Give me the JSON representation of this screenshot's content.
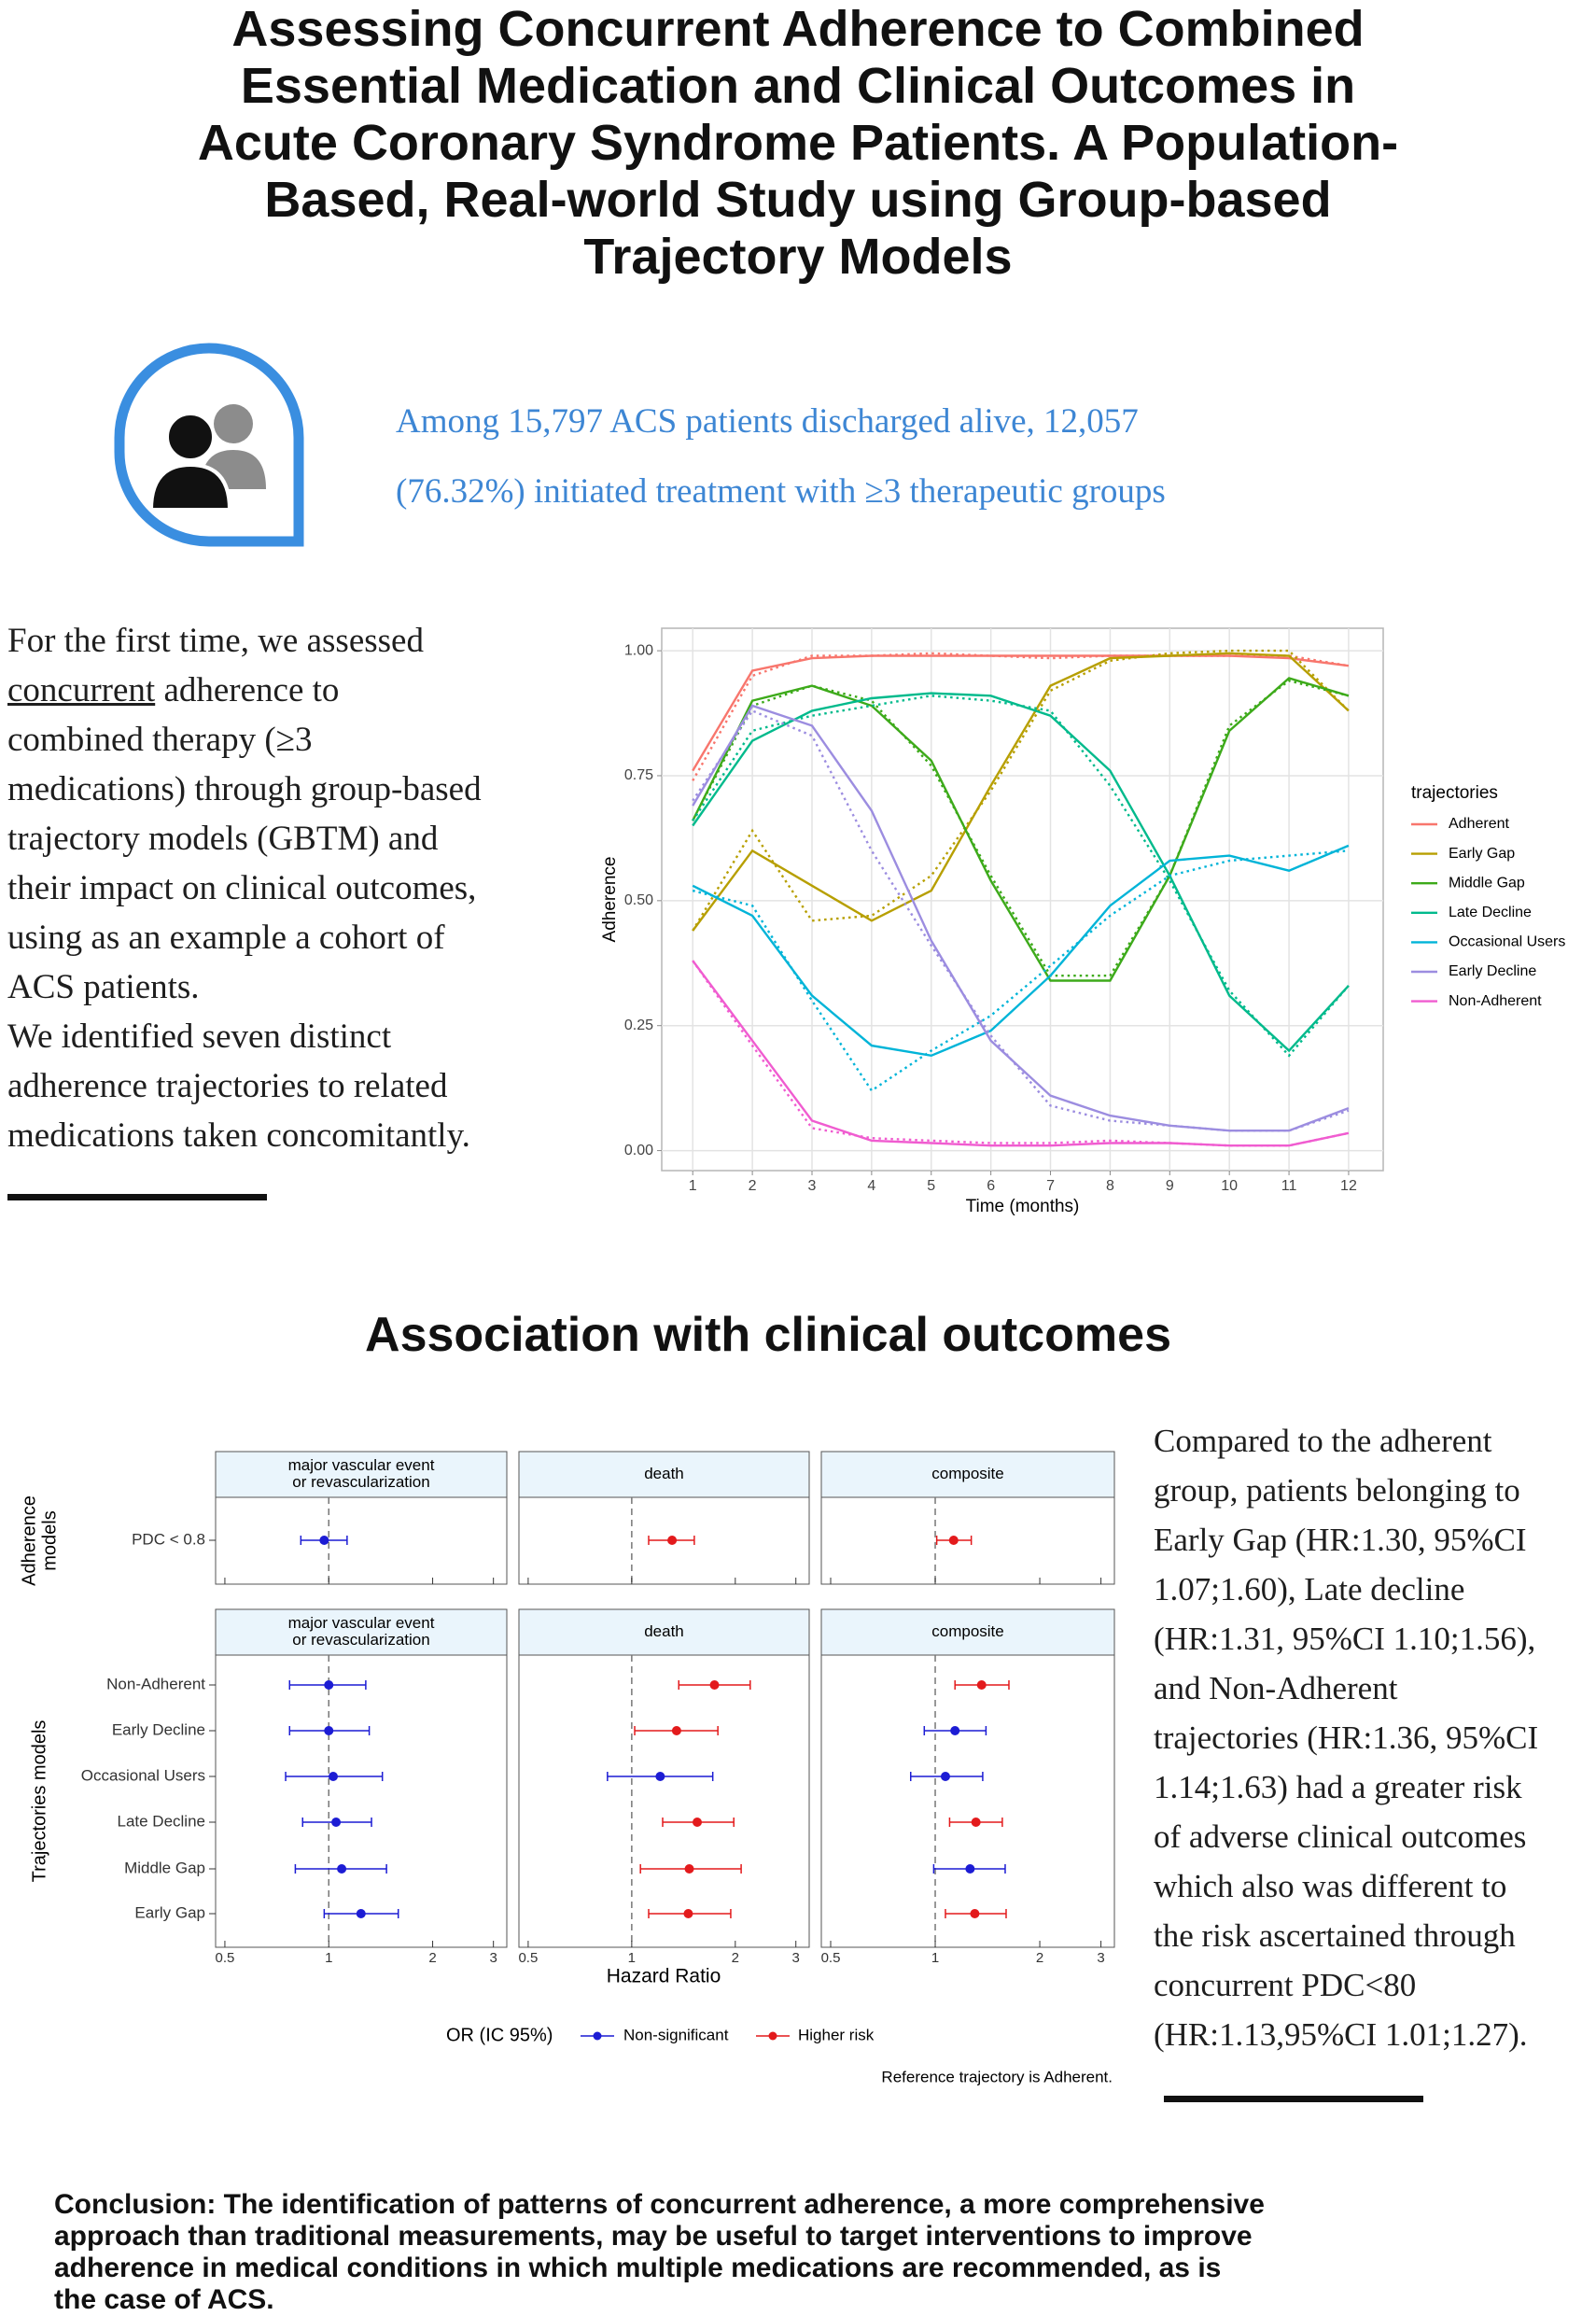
{
  "header": {
    "title_lines": [
      "Assessing Concurrent Adherence to Combined",
      "Essential Medication and Clinical Outcomes in",
      "Acute Coronary Syndrome Patients. A Population-",
      "Based, Real-world Study using Group-based",
      "Trajectory Models"
    ]
  },
  "summary": {
    "lines": [
      "Among 15,797 ACS patients discharged alive, 12,057",
      "(76.32%) initiated treatment with ≥3 therapeutic groups"
    ]
  },
  "intro": {
    "lines": [
      "For the first time, we assessed",
      {
        "underlined": "concurrent",
        "rest": " adherence to"
      },
      "combined therapy (≥3",
      "medications) through group-based",
      "trajectory models (GBTM) and",
      "their impact on clinical outcomes,",
      "using as an example a cohort of",
      "ACS patients.",
      "We identified seven distinct",
      "adherence trajectories to related",
      "medications taken concomitantly."
    ]
  },
  "section_title": "Association with clinical outcomes",
  "results": {
    "lines": [
      "Compared to the adherent",
      "group, patients belonging to",
      "Early Gap (HR:1.30, 95%CI",
      "1.07;1.60), Late decline",
      "(HR:1.31, 95%CI 1.10;1.56),",
      "and Non-Adherent",
      "trajectories (HR:1.36, 95%CI",
      "1.14;1.63) had a greater risk",
      "of adverse clinical outcomes",
      "which also was different to",
      "the risk ascertained through",
      "concurrent PDC<80",
      "(HR:1.13,95%CI 1.01;1.27)."
    ]
  },
  "conclusion": {
    "lines": [
      "Conclusion: The identification of patterns of concurrent adherence, a more comprehensive",
      "approach than traditional measurements, may be useful to target interventions to improve",
      "adherence in medical conditions in which multiple medications are recommended, as is",
      "the case of ACS."
    ]
  },
  "chart_data": [
    {
      "type": "line",
      "x_label": "Time (months)",
      "y_label": "Adherence",
      "legend_title": "trajectories",
      "x": [
        1,
        2,
        3,
        4,
        5,
        6,
        7,
        8,
        9,
        10,
        11,
        12
      ],
      "xlim": [
        0.48,
        12.58
      ],
      "xticks": [
        1,
        2,
        3,
        4,
        5,
        6,
        7,
        8,
        9,
        10,
        11,
        12
      ],
      "ylim": [
        -0.04,
        1.045
      ],
      "yticks": [
        {
          "value": 0,
          "label": "0.00"
        },
        {
          "value": 0.25,
          "label": "0.25"
        },
        {
          "value": 0.5,
          "label": "0.50"
        },
        {
          "value": 0.75,
          "label": "0.75"
        },
        {
          "value": 1,
          "label": "1.00"
        }
      ],
      "grid": true,
      "series": [
        {
          "name": "Adherent",
          "color": "#F8766D",
          "values": [
            0.76,
            0.96,
            0.985,
            0.99,
            0.99,
            0.99,
            0.99,
            0.99,
            0.99,
            0.99,
            0.985,
            0.97
          ],
          "dotted_values": [
            0.74,
            0.95,
            0.99,
            0.99,
            0.995,
            0.99,
            0.985,
            0.99,
            0.99,
            0.99,
            0.99,
            0.97
          ]
        },
        {
          "name": "Early Gap",
          "color": "#B79F00",
          "values": [
            0.44,
            0.6,
            0.53,
            0.46,
            0.52,
            0.73,
            0.93,
            0.985,
            0.99,
            0.995,
            0.99,
            0.88
          ],
          "dotted_values": [
            0.44,
            0.64,
            0.46,
            0.47,
            0.55,
            0.72,
            0.92,
            0.98,
            0.995,
            1.0,
            1.0,
            0.88
          ]
        },
        {
          "name": "Middle Gap",
          "color": "#3DAA1A",
          "values": [
            0.66,
            0.9,
            0.93,
            0.89,
            0.78,
            0.54,
            0.34,
            0.34,
            0.55,
            0.84,
            0.945,
            0.91
          ],
          "dotted_values": [
            0.66,
            0.89,
            0.93,
            0.9,
            0.77,
            0.55,
            0.35,
            0.35,
            0.55,
            0.85,
            0.94,
            0.91
          ]
        },
        {
          "name": "Late Decline",
          "color": "#00BA8C",
          "values": [
            0.65,
            0.82,
            0.88,
            0.905,
            0.915,
            0.91,
            0.87,
            0.76,
            0.55,
            0.31,
            0.2,
            0.33
          ],
          "dotted_values": [
            0.66,
            0.84,
            0.87,
            0.89,
            0.91,
            0.9,
            0.88,
            0.73,
            0.54,
            0.32,
            0.19,
            0.33
          ]
        },
        {
          "name": "Occasional Users",
          "color": "#00B4D8",
          "values": [
            0.53,
            0.47,
            0.31,
            0.21,
            0.19,
            0.24,
            0.35,
            0.49,
            0.58,
            0.59,
            0.56,
            0.61
          ],
          "dotted_values": [
            0.52,
            0.49,
            0.3,
            0.12,
            0.2,
            0.27,
            0.37,
            0.47,
            0.55,
            0.58,
            0.59,
            0.6
          ]
        },
        {
          "name": "Early Decline",
          "color": "#9C8DE0",
          "values": [
            0.69,
            0.89,
            0.85,
            0.68,
            0.42,
            0.22,
            0.11,
            0.07,
            0.05,
            0.04,
            0.04,
            0.085
          ],
          "dotted_values": [
            0.7,
            0.88,
            0.83,
            0.6,
            0.41,
            0.23,
            0.09,
            0.06,
            0.05,
            0.04,
            0.04,
            0.08
          ]
        },
        {
          "name": "Non-Adherent",
          "color": "#F05CD0",
          "values": [
            0.38,
            0.22,
            0.06,
            0.02,
            0.015,
            0.01,
            0.01,
            0.015,
            0.015,
            0.01,
            0.01,
            0.035
          ],
          "dotted_values": [
            0.38,
            0.21,
            0.045,
            0.025,
            0.02,
            0.015,
            0.015,
            0.02,
            0.015,
            0.01,
            0.01,
            0.035
          ]
        }
      ]
    },
    {
      "type": "forest",
      "x_label": "Hazard Ratio",
      "log_x": true,
      "xlim": [
        0.47,
        3.28
      ],
      "xticks": [
        0.5,
        1,
        2,
        3
      ],
      "reference_line": 1,
      "panels": [
        [
          "major vascular event",
          "or revascularization"
        ],
        [
          "death"
        ],
        [
          "composite"
        ]
      ],
      "groups": [
        {
          "label_lines": [
            "Adherence",
            "models"
          ],
          "rows": [
            "PDC < 0.8"
          ]
        },
        {
          "label_lines": [
            "Trajectories models"
          ],
          "rows": [
            "Non-Adherent",
            "Early Decline",
            "Occasional Users",
            "Late Decline",
            "Middle Gap",
            "Early Gap"
          ]
        }
      ],
      "legend_title": "OR (IC 95%)",
      "series": [
        {
          "name": "Non-significant",
          "color": "#1c1cd4"
        },
        {
          "name": "Higher risk",
          "color": "#e31a1c"
        }
      ],
      "note": "Reference trajectory is Adherent.",
      "estimates": [
        [
          [
            {
              "hr": 0.97,
              "lower": 0.83,
              "upper": 1.13,
              "series": 0
            }
          ],
          [
            {
              "hr": 1.31,
              "lower": 1.12,
              "upper": 1.52,
              "series": 1
            }
          ],
          [
            {
              "hr": 1.13,
              "lower": 1.01,
              "upper": 1.27,
              "series": 1
            }
          ]
        ],
        [
          [
            {
              "hr": 1.0,
              "lower": 0.77,
              "upper": 1.28,
              "series": 0
            },
            {
              "hr": 1.0,
              "lower": 0.77,
              "upper": 1.31,
              "series": 0
            },
            {
              "hr": 1.03,
              "lower": 0.75,
              "upper": 1.43,
              "series": 0
            },
            {
              "hr": 1.05,
              "lower": 0.84,
              "upper": 1.33,
              "series": 0
            },
            {
              "hr": 1.09,
              "lower": 0.8,
              "upper": 1.47,
              "series": 0
            },
            {
              "hr": 1.24,
              "lower": 0.97,
              "upper": 1.59,
              "series": 0
            }
          ],
          [
            {
              "hr": 1.74,
              "lower": 1.37,
              "upper": 2.21,
              "series": 1
            },
            {
              "hr": 1.35,
              "lower": 1.02,
              "upper": 1.78,
              "series": 1
            },
            {
              "hr": 1.21,
              "lower": 0.85,
              "upper": 1.72,
              "series": 0
            },
            {
              "hr": 1.55,
              "lower": 1.23,
              "upper": 1.98,
              "series": 1
            },
            {
              "hr": 1.47,
              "lower": 1.06,
              "upper": 2.08,
              "series": 1
            },
            {
              "hr": 1.46,
              "lower": 1.12,
              "upper": 1.94,
              "series": 1
            }
          ],
          [
            {
              "hr": 1.36,
              "lower": 1.14,
              "upper": 1.63,
              "series": 1
            },
            {
              "hr": 1.14,
              "lower": 0.93,
              "upper": 1.4,
              "series": 0
            },
            {
              "hr": 1.07,
              "lower": 0.85,
              "upper": 1.37,
              "series": 0
            },
            {
              "hr": 1.31,
              "lower": 1.1,
              "upper": 1.56,
              "series": 1
            },
            {
              "hr": 1.26,
              "lower": 0.99,
              "upper": 1.59,
              "series": 0
            },
            {
              "hr": 1.3,
              "lower": 1.07,
              "upper": 1.6,
              "series": 1
            }
          ]
        ]
      ]
    }
  ]
}
